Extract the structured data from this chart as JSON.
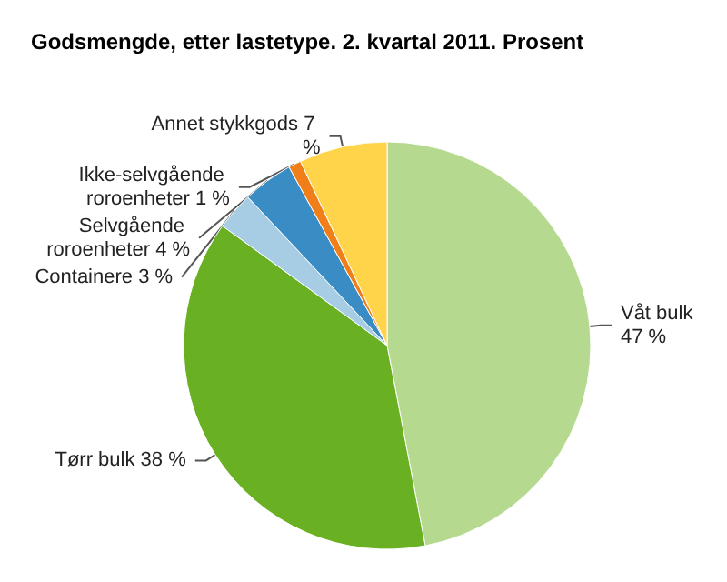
{
  "chart_data": {
    "type": "pie",
    "title": "Godsmengde, etter lastetype. 2. kvartal 2011. Prosent",
    "categories": [
      "Våt bulk",
      "Tørr bulk",
      "Containere",
      "Selvgående roroenheter",
      "Ikke-selvgående roroenheter",
      "Annet stykkgods"
    ],
    "values": [
      47,
      38,
      3,
      4,
      1,
      7
    ],
    "colors": [
      "#b5d98f",
      "#6ab023",
      "#a7cde4",
      "#3a8cc4",
      "#f07f1a",
      "#ffd34a"
    ],
    "value_labels": [
      "47 %",
      "38 %",
      "3 %",
      "4 %",
      "1 %",
      "7 %"
    ],
    "legend": false
  }
}
